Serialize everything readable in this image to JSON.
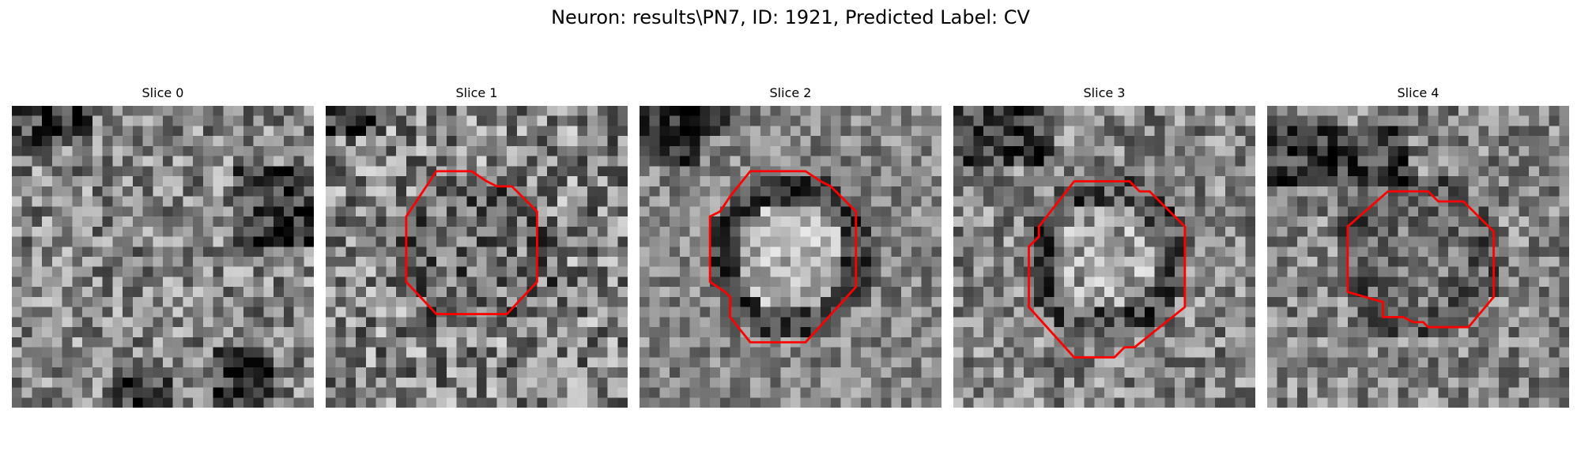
{
  "suptitle": "Neuron: results\\PN7, ID: 1921, Predicted Label: CV",
  "colors": {
    "contour": "#ff0000",
    "background": "#ffffff"
  },
  "image_grid": {
    "rows": 30,
    "cols": 30,
    "colormap": "gray"
  },
  "slices": [
    {
      "title": "Slice 0",
      "has_contour": false
    },
    {
      "title": "Slice 1",
      "has_contour": true
    },
    {
      "title": "Slice 2",
      "has_contour": true
    },
    {
      "title": "Slice 3",
      "has_contour": true
    },
    {
      "title": "Slice 4",
      "has_contour": true
    }
  ]
}
